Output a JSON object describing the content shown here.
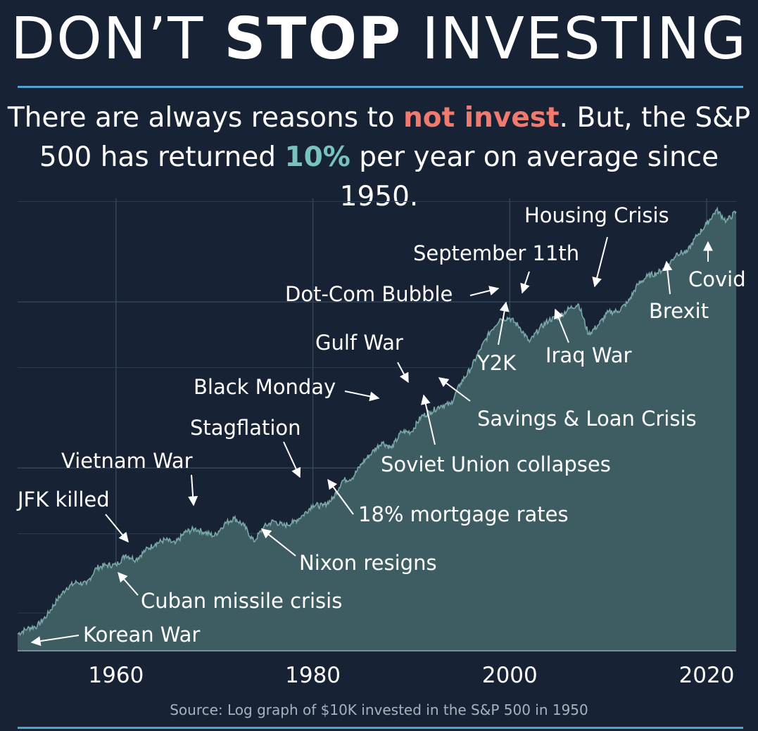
{
  "title": {
    "part1": "DON’T ",
    "part2": "STOP",
    "part3": " INVESTING"
  },
  "subtitle": {
    "line1_a": "There are always reasons to ",
    "line1_b": "not invest",
    "line1_c": ". But, the S&P",
    "line2_a": "500 has returned ",
    "line2_b": "10%",
    "line2_c": " per year on average since 1950."
  },
  "source": "Source: Log graph of $10K invested in the S&P 500 in 1950",
  "colors": {
    "background": "#172334",
    "area_fill": "#3d5d63",
    "area_line": "#7aa8a8",
    "accent_red": "#f07a6f",
    "accent_teal": "#78c3bd",
    "rule": "#4fa3cf"
  },
  "chart_data": {
    "type": "area",
    "scale": "log",
    "xlim": [
      1950,
      2023
    ],
    "x_ticks": [
      1960,
      1980,
      2000,
      2020
    ],
    "x_tick_labels": [
      "1960",
      "1980",
      "2000",
      "2020"
    ],
    "grid": true,
    "series": [
      {
        "x": [
          1950,
          1951,
          1952,
          1953,
          1954,
          1955,
          1956,
          1957,
          1958,
          1959,
          1960,
          1961,
          1962,
          1963,
          1964,
          1965,
          1966,
          1967,
          1968,
          1969,
          1970,
          1971,
          1972,
          1973,
          1974,
          1975,
          1976,
          1977,
          1978,
          1979,
          1980,
          1981,
          1982,
          1983,
          1984,
          1985,
          1986,
          1987,
          1988,
          1989,
          1990,
          1991,
          1992,
          1993,
          1994,
          1995,
          1996,
          1997,
          1998,
          1999,
          2000,
          2001,
          2002,
          2003,
          2004,
          2005,
          2006,
          2007,
          2008,
          2009,
          2010,
          2011,
          2012,
          2013,
          2014,
          2015,
          2016,
          2017,
          2018,
          2019,
          2020,
          2021,
          2022,
          2023
        ],
        "y": [
          1.0,
          1.08,
          1.12,
          1.3,
          1.6,
          1.9,
          2.05,
          2.0,
          2.5,
          2.6,
          2.6,
          3.0,
          2.8,
          3.2,
          3.5,
          3.7,
          3.5,
          4.1,
          4.3,
          4.1,
          3.9,
          4.6,
          5.0,
          4.5,
          3.6,
          4.4,
          4.8,
          4.5,
          4.7,
          5.2,
          6.0,
          5.9,
          6.5,
          8.4,
          8.7,
          10.7,
          12.4,
          14.3,
          13.2,
          16.5,
          16.5,
          20.4,
          21.8,
          23.8,
          24.2,
          32.4,
          39.3,
          51.8,
          66.0,
          79.1,
          80.0,
          70.6,
          57.3,
          69.0,
          78.0,
          81.0,
          91.0,
          97.0,
          63.8,
          72.7,
          86.7,
          87.9,
          99.4,
          127.0,
          143.2,
          149.6,
          163.5,
          196.8,
          198.9,
          250.0,
          294.7,
          357.8,
          306.4,
          350.0
        ]
      }
    ],
    "annotations": [
      {
        "label": "Korean War",
        "year": 1950.5
      },
      {
        "label": "Cuban missile crisis",
        "year": 1962.5
      },
      {
        "label": "JFK killed",
        "year": 1963.9
      },
      {
        "label": "Vietnam War",
        "year": 1968.8
      },
      {
        "label": "Nixon resigns",
        "year": 1974.6
      },
      {
        "label": "Stagflation",
        "year": 1979.8
      },
      {
        "label": "18% mortgage rates",
        "year": 1981.5
      },
      {
        "label": "Black Monday",
        "year": 1987.8
      },
      {
        "label": "Gulf War",
        "year": 1990.5
      },
      {
        "label": "Soviet Union collapses",
        "year": 1991.8
      },
      {
        "label": "Savings & Loan Crisis",
        "year": 1992.7
      },
      {
        "label": "Dot-Com Bubble",
        "year": 2000.0
      },
      {
        "label": "Y2K",
        "year": 2000.0
      },
      {
        "label": "September 11th",
        "year": 2001.7
      },
      {
        "label": "Iraq War",
        "year": 2003.7
      },
      {
        "label": "Housing Crisis",
        "year": 2008.9
      },
      {
        "label": "Brexit",
        "year": 2016.5
      },
      {
        "label": "Covid",
        "year": 2020.2
      }
    ]
  }
}
